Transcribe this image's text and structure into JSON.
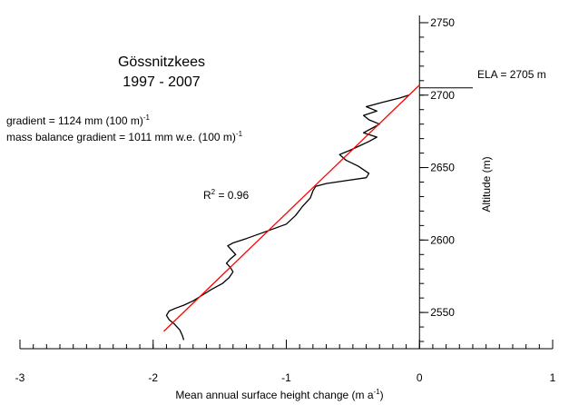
{
  "chart_data": {
    "type": "line",
    "title_line1": "Gössnitzkees",
    "title_line2": "1997 - 2007",
    "xlabel_main": "Mean annual surface height change (m a",
    "xlabel_sup": "-1",
    "xlabel_end": ")",
    "ylabel": "Altitude (m)",
    "xlim": [
      -3,
      1
    ],
    "ylim": [
      2525,
      2755
    ],
    "x_ticks": [
      -3,
      -2,
      -1,
      0,
      1
    ],
    "x_tick_labels": [
      "-3",
      "-2",
      "-1",
      "0",
      "1"
    ],
    "y_ticks": [
      2550,
      2600,
      2650,
      2700,
      2750
    ],
    "y_tick_labels": [
      "2550",
      "2600",
      "2650",
      "2700",
      "2750"
    ],
    "gradient_text": "gradient = 1124 mm (100 m)",
    "gradient_sup": "-1",
    "mass_balance_text": "mass balance gradient = 1011 mm w.e. (100 m)",
    "mass_balance_sup": "-1",
    "r2_prefix": "R",
    "r2_sup": "2",
    "r2_value": " = 0.96",
    "ela_label": "ELA = 2705 m",
    "ela_altitude": 2705,
    "series": [
      {
        "color": "#000000",
        "points": [
          [
            -1.77,
            2531
          ],
          [
            -1.78,
            2534
          ],
          [
            -1.8,
            2538
          ],
          [
            -1.84,
            2542
          ],
          [
            -1.88,
            2545
          ],
          [
            -1.9,
            2548
          ],
          [
            -1.88,
            2551
          ],
          [
            -1.83,
            2553
          ],
          [
            -1.77,
            2555
          ],
          [
            -1.7,
            2558
          ],
          [
            -1.63,
            2562
          ],
          [
            -1.56,
            2566
          ],
          [
            -1.48,
            2570
          ],
          [
            -1.43,
            2574
          ],
          [
            -1.4,
            2578
          ],
          [
            -1.42,
            2581
          ],
          [
            -1.45,
            2584
          ],
          [
            -1.42,
            2587
          ],
          [
            -1.38,
            2590
          ],
          [
            -1.41,
            2593
          ],
          [
            -1.44,
            2596
          ],
          [
            -1.4,
            2598
          ],
          [
            -1.3,
            2601
          ],
          [
            -1.15,
            2606
          ],
          [
            -1.0,
            2611
          ],
          [
            -0.93,
            2617
          ],
          [
            -0.88,
            2623
          ],
          [
            -0.82,
            2629
          ],
          [
            -0.8,
            2634
          ],
          [
            -0.78,
            2637
          ],
          [
            -0.7,
            2639
          ],
          [
            -0.55,
            2641
          ],
          [
            -0.4,
            2643
          ],
          [
            -0.38,
            2646
          ],
          [
            -0.46,
            2651
          ],
          [
            -0.55,
            2655
          ],
          [
            -0.6,
            2659
          ],
          [
            -0.52,
            2662
          ],
          [
            -0.45,
            2665
          ],
          [
            -0.38,
            2668
          ],
          [
            -0.32,
            2671
          ],
          [
            -0.42,
            2674
          ],
          [
            -0.36,
            2677
          ],
          [
            -0.3,
            2680
          ],
          [
            -0.38,
            2683
          ],
          [
            -0.42,
            2686
          ],
          [
            -0.32,
            2689
          ],
          [
            -0.4,
            2692
          ],
          [
            -0.28,
            2695
          ],
          [
            -0.15,
            2698
          ],
          [
            -0.08,
            2700
          ]
        ]
      },
      {
        "color": "#ff0000",
        "points": [
          [
            -1.92,
            2537
          ],
          [
            0.0,
            2707
          ]
        ]
      }
    ],
    "grid": false,
    "legend": "none"
  }
}
